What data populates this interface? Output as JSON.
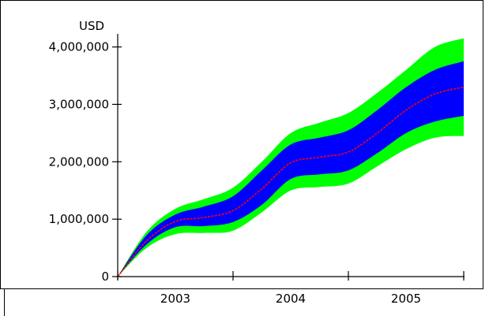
{
  "chart_data": {
    "type": "area",
    "title": "",
    "ylabel": "USD",
    "xlabel": "",
    "ylim": [
      0,
      4200000
    ],
    "y_ticks": [
      0,
      1000000,
      2000000,
      3000000,
      4000000
    ],
    "y_tick_labels": [
      "0",
      "1,000,000",
      "2,000,000",
      "3,000,000",
      "4,000,000"
    ],
    "x_range": [
      2002.5,
      2005.5
    ],
    "x_ticks": [
      2002.5,
      2003.5,
      2004.5,
      2005.5
    ],
    "x_tick_labels": [
      "2003",
      "2004",
      "2005"
    ],
    "x_tick_label_positions": [
      2003,
      2004,
      2005
    ],
    "x": [
      2002.5,
      2002.75,
      2003.0,
      2003.25,
      2003.5,
      2003.75,
      2004.0,
      2004.25,
      2004.5,
      2004.75,
      2005.0,
      2005.25,
      2005.5
    ],
    "series": [
      {
        "name": "",
        "color": "#00ff00",
        "role": "outer-band-upper",
        "values": [
          0,
          780000,
          1180000,
          1350000,
          1550000,
          2000000,
          2500000,
          2680000,
          2850000,
          3200000,
          3600000,
          4000000,
          4150000
        ]
      },
      {
        "name": "",
        "color": "#0000ff",
        "role": "inner-band-upper",
        "values": [
          0,
          720000,
          1080000,
          1220000,
          1400000,
          1850000,
          2300000,
          2420000,
          2550000,
          2900000,
          3300000,
          3600000,
          3750000
        ]
      },
      {
        "name": "",
        "color": "#ff0000",
        "role": "median",
        "values": [
          0,
          620000,
          960000,
          1030000,
          1150000,
          1530000,
          1980000,
          2080000,
          2170000,
          2500000,
          2900000,
          3180000,
          3300000
        ]
      },
      {
        "name": "",
        "color": "#0000ff",
        "role": "inner-band-lower",
        "values": [
          0,
          560000,
          860000,
          880000,
          950000,
          1250000,
          1700000,
          1780000,
          1850000,
          2150000,
          2500000,
          2700000,
          2800000
        ]
      },
      {
        "name": "",
        "color": "#00ff00",
        "role": "outer-band-lower",
        "values": [
          0,
          500000,
          740000,
          760000,
          800000,
          1120000,
          1500000,
          1560000,
          1620000,
          1920000,
          2220000,
          2420000,
          2450000
        ]
      }
    ],
    "grid": false,
    "legend": "none"
  }
}
